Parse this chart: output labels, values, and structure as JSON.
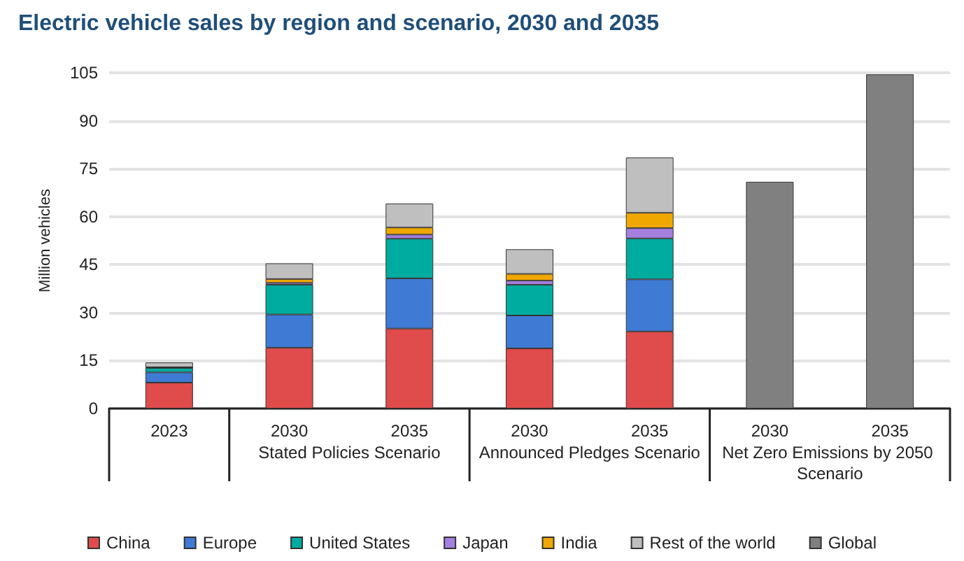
{
  "chart_data": {
    "type": "bar",
    "title": "Electric vehicle sales by region and scenario, 2030 and 2035",
    "ylabel": "Million vehicles",
    "categories": [
      "2023",
      "2030",
      "2035",
      "2030",
      "2035",
      "2030",
      "2035"
    ],
    "annotations": [
      "Stated Policies Scenario",
      "Announced Pledges Scenario",
      "Net Zero Emissions by 2050 Scenario"
    ],
    "stacked": true,
    "series": [
      {
        "name": "China",
        "color": "#e04b4b",
        "values": [
          8.1,
          19.0,
          25.0,
          18.8,
          24.1,
          null,
          null
        ]
      },
      {
        "name": "Europe",
        "color": "#3f7bd4",
        "values": [
          3.2,
          10.4,
          15.7,
          10.3,
          16.3,
          null,
          null
        ]
      },
      {
        "name": "United States",
        "color": "#00ab9f",
        "values": [
          1.4,
          9.3,
          12.4,
          9.6,
          12.8,
          null,
          null
        ]
      },
      {
        "name": "Japan",
        "color": "#a57fe0",
        "values": [
          0.1,
          0.6,
          1.3,
          1.3,
          3.2,
          null,
          null
        ]
      },
      {
        "name": "India",
        "color": "#f0a800",
        "values": [
          0.1,
          1.2,
          2.2,
          2.1,
          4.8,
          null,
          null
        ]
      },
      {
        "name": "Rest of the world",
        "color": "#bfbfbf",
        "values": [
          1.5,
          4.9,
          7.5,
          7.7,
          17.3,
          null,
          null
        ]
      },
      {
        "name": "Global",
        "color": "#808080",
        "values": [
          null,
          null,
          null,
          null,
          null,
          70.9,
          104.5
        ]
      }
    ],
    "ylim": [
      0,
      105
    ],
    "yticks": [
      0,
      15,
      30,
      45,
      60,
      75,
      90,
      105
    ],
    "grid": "y",
    "legend": "bottom"
  }
}
